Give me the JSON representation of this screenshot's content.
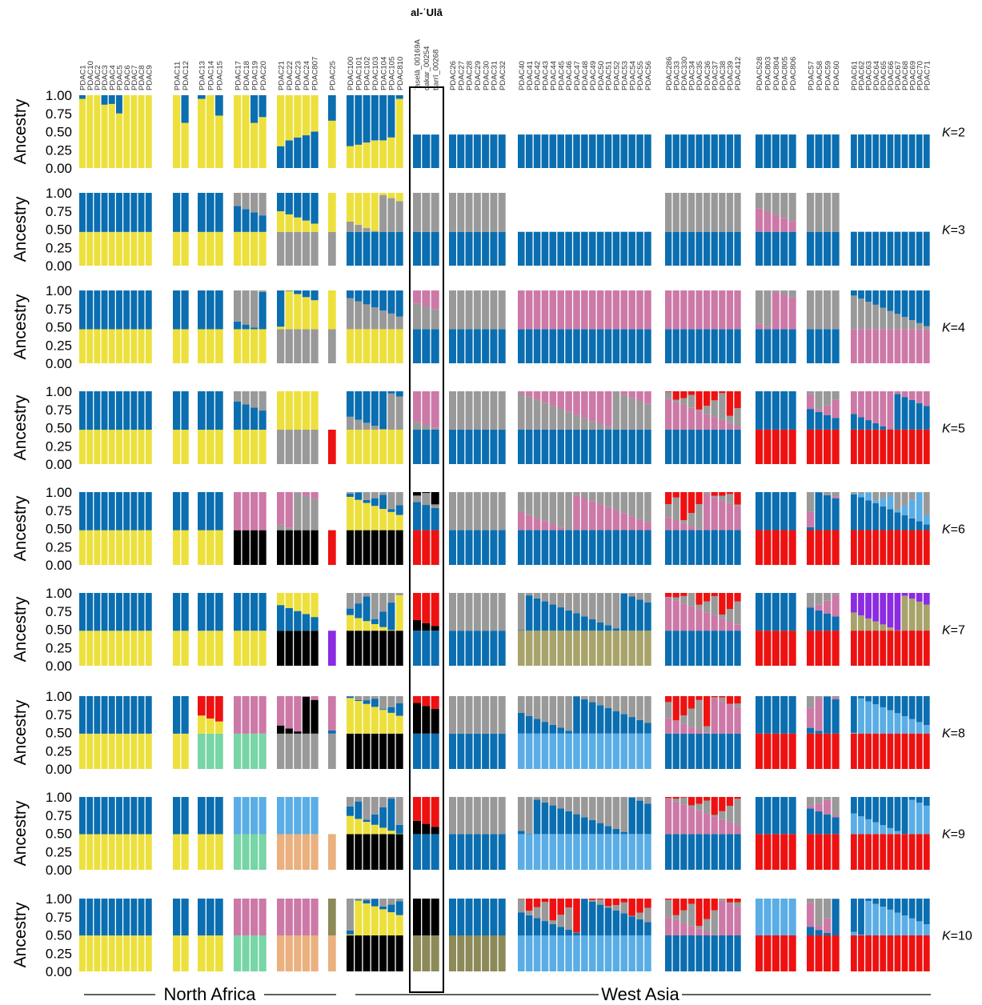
{
  "chart_data": {
    "type": "stacked-bar",
    "highlight_title": "al-ʿUlā",
    "ylabel": "Ancestry",
    "yticks": [
      "1.00",
      "0.75",
      "0.50",
      "0.25",
      "0.00"
    ],
    "ylim": [
      0,
      1
    ],
    "regions": [
      {
        "name": "North Africa",
        "from_group": 0,
        "to_group": 5
      },
      {
        "name": "West Asia",
        "from_group": 7,
        "to_group": 14
      }
    ],
    "groups": [
      {
        "samples": [
          "PDAC1",
          "PDAC10",
          "PDAC2",
          "PDAC3",
          "PDAC4",
          "PDAC5",
          "PDAC6",
          "PDAC7",
          "PDAC8",
          "PDAC9"
        ]
      },
      {
        "samples": [
          "PDAC11",
          "PDAC12"
        ]
      },
      {
        "samples": [
          "PDAC13",
          "PDAC14",
          "PDAC15"
        ]
      },
      {
        "samples": [
          "PDAC17",
          "PDAC18",
          "PDAC19",
          "PDAC20"
        ]
      },
      {
        "samples": [
          "PDAC21",
          "PDAC22",
          "PDAC23",
          "PDAC24",
          "PDAC807"
        ]
      },
      {
        "samples": [
          "PDAC25"
        ]
      },
      {
        "samples": [
          "PDAC100",
          "PDAC101",
          "PDAC102",
          "PDAC103",
          "PDAC104",
          "PDAC105",
          "PDAC810"
        ]
      },
      {
        "samples": [
          "ʿaselā_00169A",
          "dakar_00254",
          "barrī_00268"
        ],
        "highlight": true
      },
      {
        "samples": [
          "PDAC26",
          "PDAC27",
          "PDAC28",
          "PDAC29",
          "PDAC30",
          "PDAC31",
          "PDAC32"
        ]
      },
      {
        "samples": [
          "PDAC40",
          "PDAC41",
          "PDAC42",
          "PDAC43",
          "PDAC44",
          "PDAC45",
          "PDAC46",
          "PDAC47",
          "PDAC48",
          "PDAC49",
          "PDAC50",
          "PDAC51",
          "PDAC52",
          "PDAC53",
          "PDAC54",
          "PDAC55",
          "PDAC56"
        ]
      },
      {
        "samples": [
          "PDAC286",
          "PDAC33",
          "PDAC330",
          "PDAC34",
          "PDAC35",
          "PDAC36",
          "PDAC37",
          "PDAC38",
          "PDAC39",
          "PDAC412"
        ]
      },
      {
        "samples": [
          "PDAC528",
          "PDAC803",
          "PDAC804",
          "PDAC805",
          "PDAC806"
        ]
      },
      {
        "samples": [
          "PDAC57",
          "PDAC58",
          "PDAC59",
          "PDAC60"
        ]
      },
      {
        "samples": [
          "PDAC61",
          "PDAC62",
          "PDAC63",
          "PDAC64",
          "PDAC65",
          "PDAC66",
          "PDAC67",
          "PDAC68",
          "PDAC69",
          "PDAC70",
          "PDAC71"
        ]
      }
    ],
    "colors": {
      "yellow": "#ede03c",
      "blue": "#0a6eb0",
      "gray": "#999999",
      "pink": "#cc79a7",
      "red": "#ee1111",
      "black": "#000000",
      "olive": "#a8a36a",
      "purple": "#8b2be2",
      "mint": "#77d5a6",
      "skyblue": "#5aade5",
      "tan": "#eab07e",
      "darkolive": "#8c8a58"
    },
    "panels": [
      {
        "k_prefix": "K",
        "k_value": "=2",
        "group_base": [
          [
            "yellow",
            "blue"
          ],
          [
            "yellow",
            "blue"
          ],
          [
            "yellow",
            "blue"
          ],
          [
            "yellow",
            "blue"
          ],
          [
            "blue",
            "yellow"
          ],
          [
            "yellow",
            "blue"
          ],
          [
            "yellow",
            "blue"
          ],
          [
            "blue"
          ],
          [
            "blue"
          ],
          [
            "blue"
          ],
          [
            "blue"
          ],
          [
            "blue"
          ],
          [
            "blue"
          ],
          [
            "blue"
          ]
        ],
        "overrides": {
          "0": [
            [
              0.95,
              0.05
            ],
            [
              1,
              0
            ],
            [
              1,
              0
            ],
            [
              0.87,
              0.13
            ],
            [
              0.88,
              0.12
            ],
            [
              0.75,
              0.25
            ],
            [
              1,
              0
            ],
            [
              1,
              0
            ],
            [
              1,
              0
            ],
            [
              1,
              0
            ]
          ],
          "1": [
            [
              1,
              0
            ],
            [
              0.62,
              0.38
            ]
          ],
          "2": [
            [
              0.95,
              0.05
            ],
            [
              1,
              0
            ],
            [
              0.72,
              0.28
            ]
          ],
          "3": [
            [
              1,
              0
            ],
            [
              1,
              0
            ],
            [
              0.62,
              0.38
            ],
            [
              0.7,
              0.3
            ]
          ],
          "4": [
            [
              0.3,
              0.7
            ],
            [
              0.38,
              0.62
            ],
            [
              0.42,
              0.58
            ],
            [
              0.45,
              0.55
            ],
            [
              0.5,
              0.5
            ]
          ],
          "5": [
            [
              0.65,
              0.35
            ]
          ],
          "6": [
            [
              0.3,
              0.7
            ],
            [
              0.32,
              0.68
            ],
            [
              0.35,
              0.65
            ],
            [
              0.38,
              0.62
            ],
            [
              0.38,
              0.62
            ],
            [
              0.42,
              0.58
            ],
            [
              0.95,
              0.05
            ]
          ]
        }
      },
      {
        "k_prefix": "K",
        "k_value": "=3"
      },
      {
        "k_prefix": "K",
        "k_value": "=4"
      },
      {
        "k_prefix": "K",
        "k_value": "=5"
      },
      {
        "k_prefix": "K",
        "k_value": "=6"
      },
      {
        "k_prefix": "K",
        "k_value": "=7"
      },
      {
        "k_prefix": "K",
        "k_value": "=8"
      },
      {
        "k_prefix": "K",
        "k_value": "=9"
      },
      {
        "k_prefix": "K",
        "k_value": "=10"
      }
    ],
    "notes_k_mixtures": {
      "3": {
        "4": [
          "gray",
          "yellow",
          "blue"
        ],
        "6": [
          "blue",
          "gray",
          "yellow"
        ],
        "7": [
          "blue",
          "gray"
        ],
        "10": [
          "blue",
          "gray"
        ],
        "12": [
          "blue",
          "gray"
        ]
      },
      "4": {
        "4": [
          "gray",
          "yellow",
          "blue"
        ],
        "9": [
          "blue",
          "pink"
        ],
        "10": [
          "blue",
          "pink"
        ],
        "13": [
          "pink",
          "gray",
          "blue"
        ]
      },
      "5": {
        "4": [
          "gray",
          "yellow"
        ],
        "5": [
          "red"
        ],
        "9": [
          "blue",
          "gray",
          "pink"
        ],
        "11": [
          "red",
          "blue"
        ],
        "13": [
          "red",
          "blue",
          "pink"
        ]
      },
      "6": {
        "3": [
          "black",
          "pink"
        ],
        "4": [
          "black",
          "gray",
          "pink"
        ],
        "11": [
          "red",
          "blue"
        ]
      },
      "7": {
        "3": [
          "yellow",
          "blue"
        ],
        "4": [
          "black",
          "blue",
          "yellow"
        ],
        "5": [
          "purple"
        ],
        "9": [
          "olive",
          "blue",
          "gray"
        ],
        "13": [
          "red",
          "olive",
          "purple"
        ]
      },
      "8": {
        "2": [
          "mint",
          "yellow",
          "red"
        ],
        "3": [
          "mint",
          "pink"
        ],
        "9": [
          "skyblue",
          "blue",
          "gray"
        ],
        "13": [
          "red",
          "skyblue",
          "blue"
        ]
      },
      "9": {
        "3": [
          "mint",
          "skyblue"
        ],
        "4": [
          "tan",
          "skyblue"
        ],
        "5": [
          "tan"
        ],
        "9": [
          "skyblue",
          "blue",
          "gray"
        ],
        "13": [
          "red",
          "skyblue",
          "blue"
        ]
      },
      "10": {
        "3": [
          "mint",
          "pink"
        ],
        "4": [
          "tan",
          "pink"
        ],
        "5": [
          "tan",
          "darkolive"
        ],
        "7": [
          "darkolive",
          "black"
        ],
        "8": [
          "darkolive",
          "blue"
        ],
        "9": [
          "skyblue",
          "blue",
          "gray",
          "red"
        ],
        "11": [
          "red",
          "skyblue"
        ],
        "13": [
          "red",
          "skyblue",
          "blue"
        ]
      }
    }
  }
}
